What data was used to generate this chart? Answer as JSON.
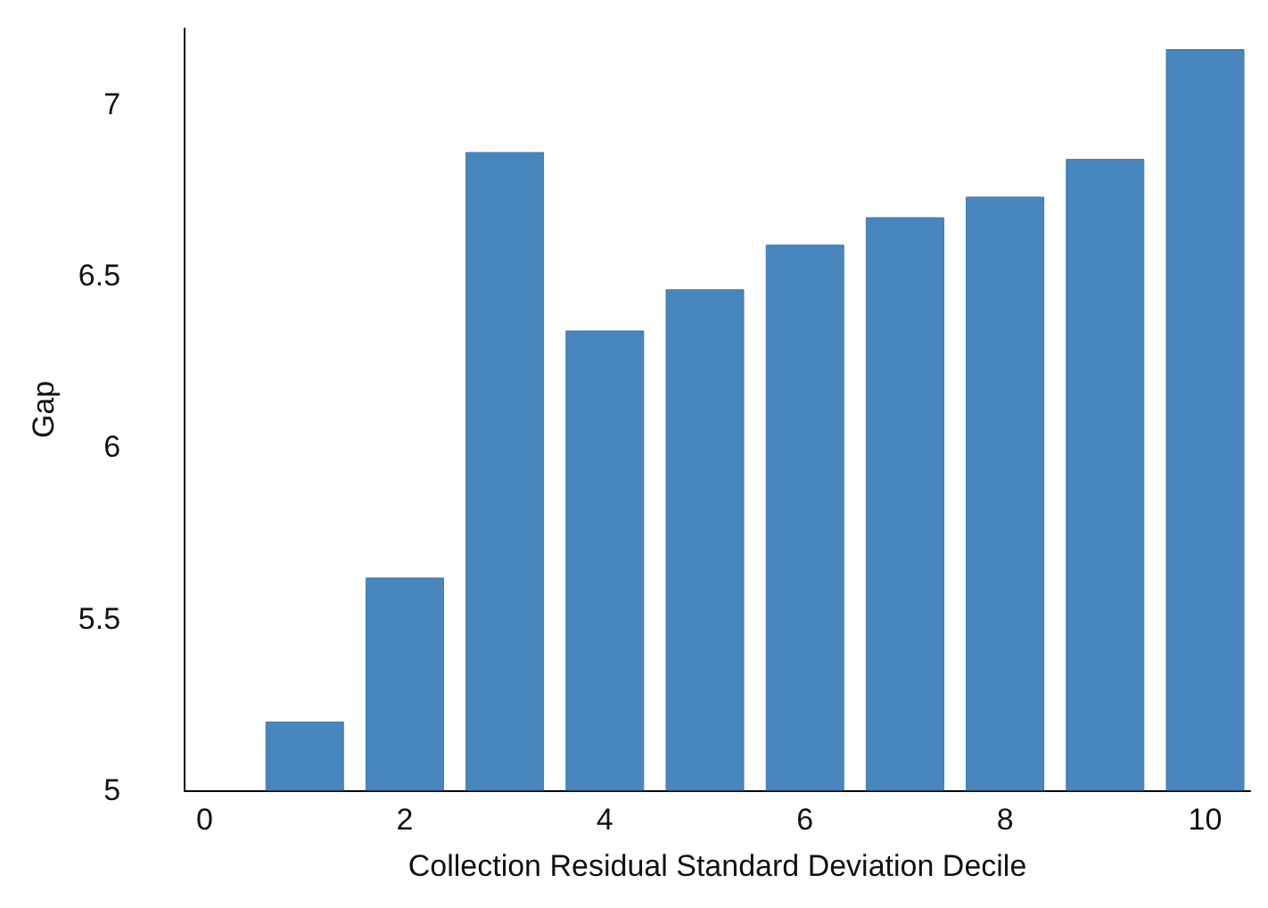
{
  "chart_data": {
    "type": "bar",
    "xlabel": "Collection Residual Standard Deviation Decile",
    "ylabel": "Gap",
    "x": [
      1,
      2,
      3,
      4,
      5,
      6,
      7,
      8,
      9,
      10
    ],
    "values": [
      5.2,
      5.62,
      6.86,
      6.34,
      6.46,
      6.59,
      6.67,
      6.73,
      6.84,
      7.16
    ],
    "color": "#4a86be",
    "xlim": [
      -0.2,
      10.45
    ],
    "xticks": [
      0,
      2,
      4,
      6,
      8,
      10
    ],
    "ylim": [
      5,
      7.22
    ],
    "yticks": [
      5,
      5.5,
      6,
      6.5,
      7
    ],
    "grid": false
  }
}
